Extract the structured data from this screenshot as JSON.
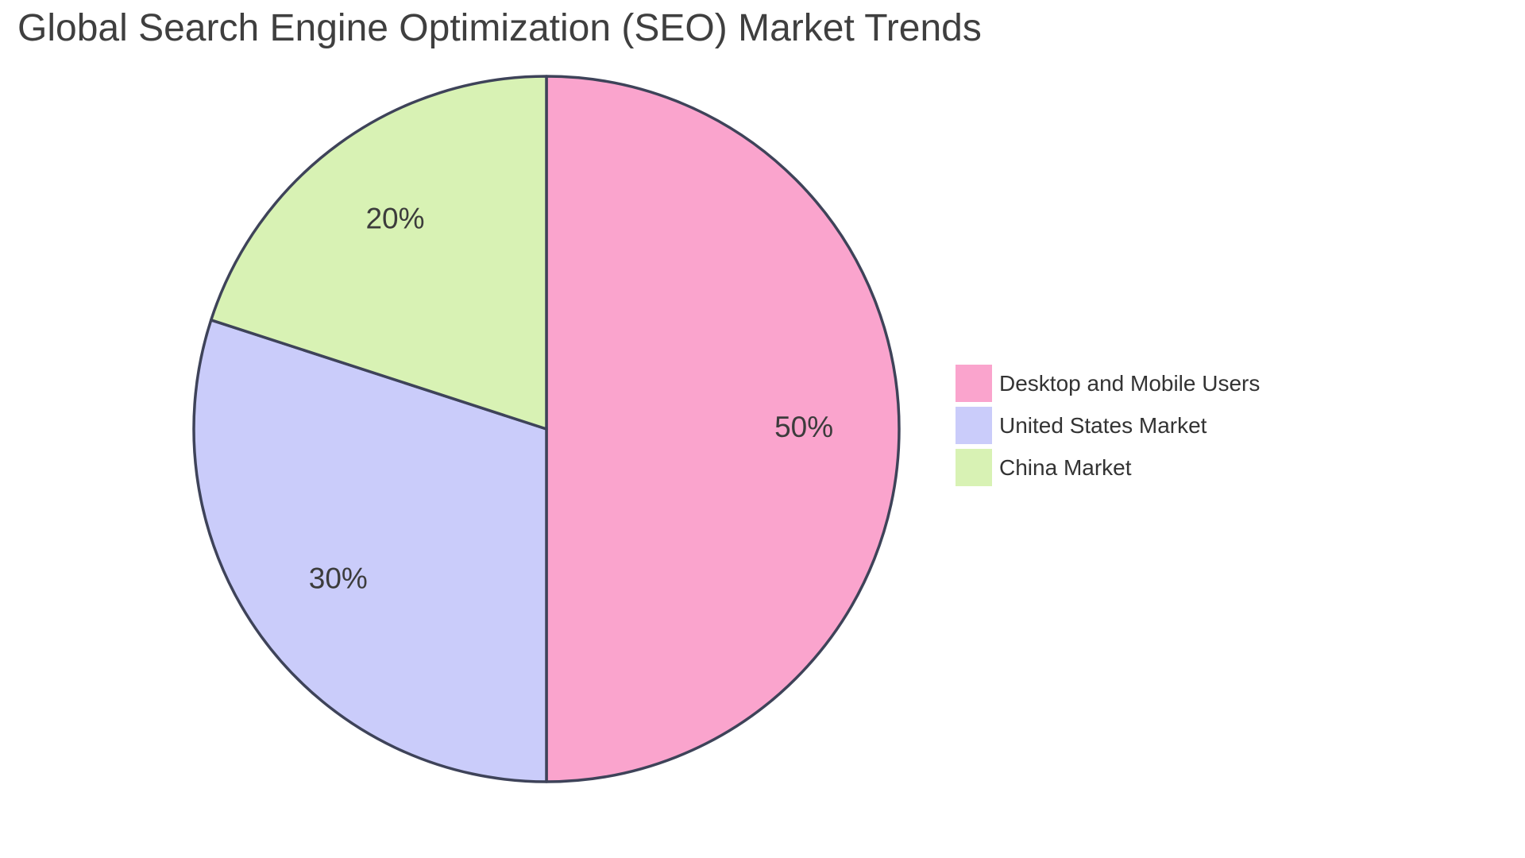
{
  "title": "Global Search Engine Optimization (SEO) Market Trends",
  "chart_data": {
    "type": "pie",
    "title": "Global Search Engine Optimization (SEO) Market Trends",
    "slices": [
      {
        "label": "Desktop and Mobile Users",
        "value": 50,
        "pct_label": "50%",
        "color": "#FAA4CD"
      },
      {
        "label": "United States Market",
        "value": 30,
        "pct_label": "30%",
        "color": "#CACCFA"
      },
      {
        "label": "China Market",
        "value": 20,
        "pct_label": "20%",
        "color": "#D8F2B4"
      }
    ],
    "start_angle_deg": 0,
    "direction": "clockwise",
    "legend_position": "right",
    "stroke_color": "#3E4359",
    "slice_label_color": "#3C3C3C",
    "title_color": "#3f3f3f",
    "legend_text_color": "#333333"
  }
}
